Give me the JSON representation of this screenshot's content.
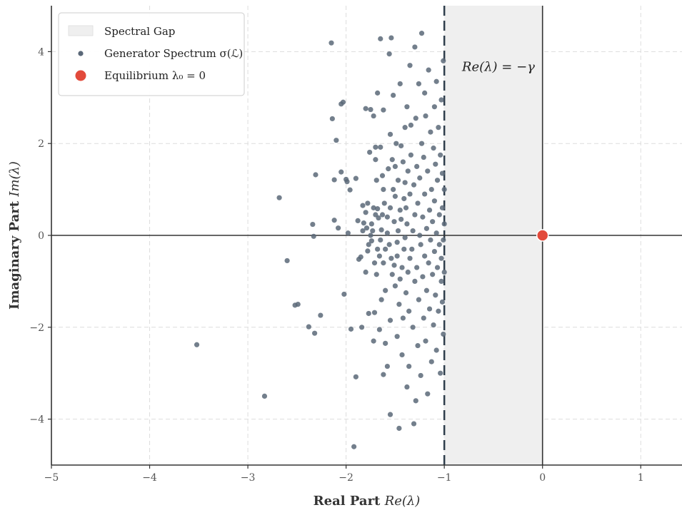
{
  "chart_data": {
    "type": "scatter",
    "xlabel_prefix": "Real Part ",
    "xlabel_math": "Re(λ)",
    "ylabel_prefix": "Imaginary Part ",
    "ylabel_math": "Im(λ)",
    "xlim": [
      -5,
      1.42
    ],
    "ylim": [
      -5,
      5
    ],
    "xticks": [
      -5,
      -4,
      -3,
      -2,
      -1,
      0,
      1
    ],
    "yticks": [
      -4,
      -2,
      0,
      2,
      4
    ],
    "xtick_labels": [
      "−5",
      "−4",
      "−3",
      "−2",
      "−1",
      "0",
      "1"
    ],
    "ytick_labels": [
      "−4",
      "−2",
      "0",
      "2",
      "4"
    ],
    "grid": true,
    "legend_position": "top-left",
    "legend": [
      {
        "label": "Spectral Gap",
        "type": "patch"
      },
      {
        "label": "Generator Spectrum σ(ℒ)",
        "type": "scatter"
      },
      {
        "label": "Equilibrium λ₀ = 0",
        "type": "point"
      }
    ],
    "annotation": "Re(λ) = −γ",
    "gap_region": {
      "x_from": -1,
      "x_to": 0
    },
    "threshold_x": -1,
    "equilibrium": {
      "x": 0,
      "y": 0
    },
    "colors": {
      "spectrum": "#5a6878",
      "equilibrium": "#e24a3b",
      "gap_fill": "#efefef",
      "axes": "#333333",
      "grid": "#dddddd",
      "threshold": "#2f3e4c"
    },
    "spectrum_points": [
      [
        -3.52,
        -2.38
      ],
      [
        -2.83,
        -3.5
      ],
      [
        -2.68,
        0.82
      ],
      [
        -2.6,
        -0.55
      ],
      [
        -2.52,
        -1.52
      ],
      [
        -2.49,
        -1.5
      ],
      [
        -2.38,
        -1.99
      ],
      [
        -2.34,
        0.24
      ],
      [
        -2.33,
        -0.02
      ],
      [
        -2.32,
        -2.13
      ],
      [
        -2.31,
        1.32
      ],
      [
        -2.26,
        -1.74
      ],
      [
        -2.15,
        4.19
      ],
      [
        -2.14,
        2.54
      ],
      [
        -2.12,
        1.21
      ],
      [
        -2.12,
        0.33
      ],
      [
        -2.1,
        2.07
      ],
      [
        -2.08,
        0.16
      ],
      [
        -2.05,
        2.86
      ],
      [
        -2.05,
        1.38
      ],
      [
        -2.03,
        2.9
      ],
      [
        -2.02,
        -1.28
      ],
      [
        -2.0,
        1.22
      ],
      [
        -1.99,
        1.17
      ],
      [
        -1.98,
        0.05
      ],
      [
        -1.96,
        0.99
      ],
      [
        -1.95,
        -2.04
      ],
      [
        -1.92,
        -4.6
      ],
      [
        -1.9,
        -3.08
      ],
      [
        -1.9,
        1.24
      ],
      [
        -1.88,
        0.32
      ],
      [
        -1.87,
        -0.52
      ],
      [
        -1.85,
        -0.47
      ],
      [
        -1.84,
        -2.0
      ],
      [
        -1.83,
        0.1
      ],
      [
        -1.83,
        0.65
      ],
      [
        -1.82,
        0.27
      ],
      [
        -1.8,
        0.5
      ],
      [
        -1.8,
        2.76
      ],
      [
        -1.8,
        -0.8
      ],
      [
        -1.79,
        0.16
      ],
      [
        -1.78,
        -0.34
      ],
      [
        -1.78,
        0.7
      ],
      [
        -1.77,
        -0.2
      ],
      [
        -1.77,
        -1.7
      ],
      [
        -1.76,
        1.81
      ],
      [
        -1.75,
        2.74
      ],
      [
        -1.75,
        0.0
      ],
      [
        -1.74,
        0.25
      ],
      [
        -1.74,
        -0.12
      ],
      [
        -1.73,
        0.1
      ],
      [
        -1.72,
        0.6
      ],
      [
        -1.72,
        2.6
      ],
      [
        -1.72,
        -2.3
      ],
      [
        -1.71,
        -0.6
      ],
      [
        -1.71,
        -1.68
      ],
      [
        -1.7,
        1.92
      ],
      [
        -1.7,
        1.65
      ],
      [
        -1.7,
        0.45
      ],
      [
        -1.69,
        -0.85
      ],
      [
        -1.69,
        1.2
      ],
      [
        -1.68,
        0.58
      ],
      [
        -1.68,
        -0.3
      ],
      [
        -1.68,
        3.1
      ],
      [
        -1.67,
        0.38
      ],
      [
        -1.66,
        -2.05
      ],
      [
        -1.66,
        -0.45
      ],
      [
        -1.65,
        4.28
      ],
      [
        -1.65,
        1.92
      ],
      [
        -1.65,
        -0.1
      ],
      [
        -1.64,
        0.12
      ],
      [
        -1.64,
        -1.4
      ],
      [
        -1.63,
        1.3
      ],
      [
        -1.63,
        0.45
      ],
      [
        -1.62,
        -3.03
      ],
      [
        -1.62,
        -0.6
      ],
      [
        -1.62,
        1.0
      ],
      [
        -1.62,
        2.73
      ],
      [
        -1.61,
        0.7
      ],
      [
        -1.6,
        -0.3
      ],
      [
        -1.6,
        -2.35
      ],
      [
        -1.6,
        -1.2
      ],
      [
        -1.58,
        -2.85
      ],
      [
        -1.58,
        0.4
      ],
      [
        -1.58,
        0.05
      ],
      [
        -1.57,
        1.45
      ],
      [
        -1.56,
        -0.2
      ],
      [
        -1.56,
        3.95
      ],
      [
        -1.55,
        -1.85
      ],
      [
        -1.55,
        2.2
      ],
      [
        -1.55,
        0.6
      ],
      [
        -1.55,
        -3.9
      ],
      [
        -1.54,
        4.3
      ],
      [
        -1.54,
        -0.5
      ],
      [
        -1.53,
        -0.85
      ],
      [
        -1.53,
        1.65
      ],
      [
        -1.52,
        1.0
      ],
      [
        -1.52,
        3.05
      ],
      [
        -1.51,
        -0.65
      ],
      [
        -1.51,
        0.3
      ],
      [
        -1.5,
        1.5
      ],
      [
        -1.5,
        -1.1
      ],
      [
        -1.5,
        0.85
      ],
      [
        -1.49,
        2.0
      ],
      [
        -1.48,
        -0.15
      ],
      [
        -1.48,
        -2.2
      ],
      [
        -1.48,
        -0.45
      ],
      [
        -1.47,
        0.1
      ],
      [
        -1.47,
        1.2
      ],
      [
        -1.46,
        -4.2
      ],
      [
        -1.46,
        -1.5
      ],
      [
        -1.45,
        0.55
      ],
      [
        -1.45,
        -0.95
      ],
      [
        -1.45,
        3.3
      ],
      [
        -1.44,
        1.95
      ],
      [
        -1.44,
        0.35
      ],
      [
        -1.43,
        -0.7
      ],
      [
        -1.43,
        -2.6
      ],
      [
        -1.42,
        -1.8
      ],
      [
        -1.42,
        1.6
      ],
      [
        -1.41,
        0.8
      ],
      [
        -1.41,
        -0.3
      ],
      [
        -1.4,
        2.35
      ],
      [
        -1.4,
        -0.05
      ],
      [
        -1.4,
        1.15
      ],
      [
        -1.39,
        -1.25
      ],
      [
        -1.39,
        0.6
      ],
      [
        -1.38,
        -3.3
      ],
      [
        -1.38,
        2.8
      ],
      [
        -1.38,
        0.25
      ],
      [
        -1.37,
        -0.8
      ],
      [
        -1.37,
        1.4
      ],
      [
        -1.36,
        -2.85
      ],
      [
        -1.36,
        -1.65
      ],
      [
        -1.35,
        3.7
      ],
      [
        -1.35,
        -0.5
      ],
      [
        -1.35,
        0.9
      ],
      [
        -1.34,
        1.75
      ],
      [
        -1.34,
        2.4
      ],
      [
        -1.33,
        -0.3
      ],
      [
        -1.32,
        -2.0
      ],
      [
        -1.32,
        0.1
      ],
      [
        -1.31,
        1.1
      ],
      [
        -1.31,
        -4.1
      ],
      [
        -1.3,
        -1.0
      ],
      [
        -1.3,
        4.1
      ],
      [
        -1.3,
        0.45
      ],
      [
        -1.29,
        -3.6
      ],
      [
        -1.29,
        2.55
      ],
      [
        -1.28,
        -0.7
      ],
      [
        -1.28,
        1.5
      ],
      [
        -1.27,
        -2.4
      ],
      [
        -1.27,
        0.7
      ],
      [
        -1.26,
        -1.4
      ],
      [
        -1.26,
        3.3
      ],
      [
        -1.25,
        0.0
      ],
      [
        -1.25,
        1.25
      ],
      [
        -1.24,
        -3.05
      ],
      [
        -1.24,
        -0.2
      ],
      [
        -1.23,
        4.4
      ],
      [
        -1.23,
        2.0
      ],
      [
        -1.22,
        -0.9
      ],
      [
        -1.22,
        0.4
      ],
      [
        -1.21,
        -1.8
      ],
      [
        -1.21,
        1.7
      ],
      [
        -1.2,
        3.1
      ],
      [
        -1.2,
        -0.45
      ],
      [
        -1.2,
        0.9
      ],
      [
        -1.19,
        -2.3
      ],
      [
        -1.19,
        2.6
      ],
      [
        -1.18,
        -1.2
      ],
      [
        -1.18,
        0.15
      ],
      [
        -1.17,
        1.4
      ],
      [
        -1.17,
        -3.45
      ],
      [
        -1.16,
        -0.6
      ],
      [
        -1.16,
        3.6
      ],
      [
        -1.15,
        0.55
      ],
      [
        -1.15,
        -1.6
      ],
      [
        -1.14,
        2.25
      ],
      [
        -1.14,
        -0.1
      ],
      [
        -1.13,
        1.0
      ],
      [
        -1.13,
        -2.75
      ],
      [
        -1.12,
        -0.85
      ],
      [
        -1.12,
        0.3
      ],
      [
        -1.11,
        1.9
      ],
      [
        -1.11,
        -1.95
      ],
      [
        -1.1,
        2.8
      ],
      [
        -1.1,
        -0.35
      ],
      [
        -1.1,
        0.75
      ],
      [
        -1.09,
        -1.3
      ],
      [
        -1.09,
        1.55
      ],
      [
        -1.08,
        -2.5
      ],
      [
        -1.08,
        3.35
      ],
      [
        -1.08,
        0.05
      ],
      [
        -1.07,
        -0.7
      ],
      [
        -1.07,
        1.2
      ],
      [
        -1.06,
        -1.65
      ],
      [
        -1.06,
        2.35
      ],
      [
        -1.05,
        -0.2
      ],
      [
        -1.05,
        0.45
      ],
      [
        -1.04,
        -3.0
      ],
      [
        -1.04,
        1.75
      ],
      [
        -1.03,
        -1.0
      ],
      [
        -1.03,
        2.95
      ],
      [
        -1.03,
        -0.5
      ],
      [
        -1.02,
        0.6
      ],
      [
        -1.02,
        -1.45
      ],
      [
        -1.02,
        1.35
      ],
      [
        -1.01,
        -2.15
      ],
      [
        -1.01,
        3.8
      ],
      [
        -1.01,
        -0.1
      ],
      [
        -1.0,
        0.25
      ],
      [
        -1.0,
        1.0
      ],
      [
        -1.0,
        -0.8
      ]
    ]
  }
}
